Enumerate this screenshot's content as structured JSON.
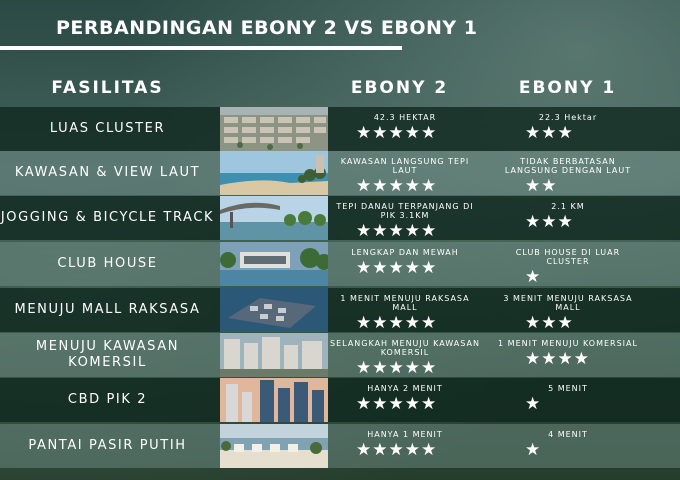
{
  "title": "PERBANDINGAN EBONY 2 VS EBONY 1",
  "headers": {
    "facility": "FASILITAS",
    "ebony2": "EBONY 2",
    "ebony1": "EBONY 1"
  },
  "rows": [
    {
      "label": "LUAS CLUSTER",
      "ebony2_note": "42.3 HEKTAR",
      "ebony2_stars": "★★★★★",
      "ebony2_rating": 5,
      "ebony1_note": "22.3 Hektar",
      "ebony1_stars": "★★★",
      "ebony1_rating": 3,
      "image": "cluster-aerial-photo"
    },
    {
      "label": "KAWASAN & VIEW LAUT",
      "ebony2_note": "KAWASAN LANGSUNG TEPI LAUT",
      "ebony2_stars": "★★★★★",
      "ebony2_rating": 5,
      "ebony1_note": "TIDAK BERBATASAN LANGSUNG DENGAN LAUT",
      "ebony1_stars": "★★",
      "ebony1_rating": 2,
      "image": "sea-view-photo"
    },
    {
      "label": "JOGGING & BICYCLE TRACK",
      "ebony2_note": "TEPI DANAU TERPANJANG DI PIK 3.1KM",
      "ebony2_stars": "★★★★★",
      "ebony2_rating": 5,
      "ebony1_note": "2.1 KM",
      "ebony1_stars": "★★★",
      "ebony1_rating": 3,
      "image": "lakeside-track-photo"
    },
    {
      "label": "CLUB HOUSE",
      "ebony2_note": "LENGKAP DAN MEWAH",
      "ebony2_stars": "★★★★★",
      "ebony2_rating": 5,
      "ebony1_note": "CLUB HOUSE DI LUAR CLUSTER",
      "ebony1_stars": "★",
      "ebony1_rating": 1,
      "image": "club-house-photo"
    },
    {
      "label": "MENUJU MALL RAKSASA",
      "ebony2_note": "1 MENIT MENUJU RAKSASA MALL",
      "ebony2_stars": "★★★★★",
      "ebony2_rating": 5,
      "ebony1_note": "3 MENIT MENUJU RAKSASA MALL",
      "ebony1_stars": "★★★",
      "ebony1_rating": 3,
      "image": "mall-aerial-photo"
    },
    {
      "label": "MENUJU KAWASAN KOMERSIL",
      "ebony2_note": "SELANGKAH MENUJU KAWASAN KOMERSIL",
      "ebony2_stars": "★★★★★",
      "ebony2_rating": 5,
      "ebony1_note": "1 MENIT MENUJU KOMERSIAL",
      "ebony1_stars": "★★★★",
      "ebony1_rating": 4,
      "image": "commercial-area-photo"
    },
    {
      "label": "CBD PIK 2",
      "ebony2_note": "HANYA 2 MENIT",
      "ebony2_stars": "★★★★★",
      "ebony2_rating": 5,
      "ebony1_note": "5 MENIT",
      "ebony1_stars": "★",
      "ebony1_rating": 1,
      "image": "cbd-skyline-photo"
    },
    {
      "label": "PANTAI PASIR PUTIH",
      "ebony2_note": "HANYA 1 MENIT",
      "ebony2_stars": "★★★★★",
      "ebony2_rating": 5,
      "ebony1_note": "4 MENIT",
      "ebony1_stars": "★",
      "ebony1_rating": 1,
      "image": "white-sand-beach-photo"
    }
  ]
}
